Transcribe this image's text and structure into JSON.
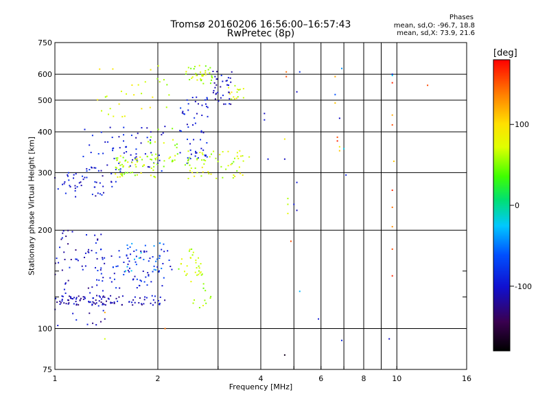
{
  "chart_data": {
    "type": "scatter",
    "title": "Tromsø 20160206 16:56:00–16:57:43",
    "subtitle": "RwPretec (8p)",
    "xlabel": "Frequency [MHz]",
    "ylabel": "Stationary phase Virtual Height [km]",
    "x_scale": "log2",
    "y_scale": "log",
    "xlim": [
      1,
      16
    ],
    "ylim": [
      75,
      750
    ],
    "x_ticks": [
      1,
      2,
      4,
      6,
      8,
      10,
      16
    ],
    "x_ticks_unlabeled": [
      3,
      5,
      7,
      9
    ],
    "y_ticks": [
      75,
      100,
      200,
      300,
      400,
      500,
      600,
      750
    ],
    "y_ticks_unlabeled": [
      125,
      150
    ],
    "grid": true,
    "colorbar": {
      "label": "[deg]",
      "range": [
        -180,
        180
      ],
      "ticks": [
        -100,
        0,
        100
      ]
    },
    "phase_stats": {
      "title": "Phases",
      "line_o": "mean, sd,O: -96.7, 18.8",
      "line_x": "mean, sd,X:  73.9, 21.6"
    },
    "clusters": [
      {
        "f": [
          1.0,
          1.55
        ],
        "h": [
          250,
          300
        ],
        "phase": -105,
        "n": 45
      },
      {
        "f": [
          1.2,
          2.1
        ],
        "h": [
          300,
          420
        ],
        "phase": -95,
        "n": 70
      },
      {
        "f": [
          1.5,
          2.0
        ],
        "h": [
          290,
          340
        ],
        "phase": 75,
        "n": 60
      },
      {
        "f": [
          1.85,
          2.3
        ],
        "h": [
          310,
          420
        ],
        "phase": 70,
        "n": 25
      },
      {
        "f": [
          1.3,
          2.2
        ],
        "h": [
          440,
          650
        ],
        "phase": 85,
        "n": 30
      },
      {
        "f": [
          2.3,
          2.8
        ],
        "h": [
          320,
          520
        ],
        "phase": -95,
        "n": 55
      },
      {
        "f": [
          2.4,
          3.6
        ],
        "h": [
          285,
          350
        ],
        "phase": 78,
        "n": 60
      },
      {
        "f": [
          2.4,
          2.9
        ],
        "h": [
          560,
          640
        ],
        "phase": 75,
        "n": 35
      },
      {
        "f": [
          2.9,
          3.3
        ],
        "h": [
          480,
          620
        ],
        "phase": -110,
        "n": 35
      },
      {
        "f": [
          3.2,
          3.6
        ],
        "h": [
          500,
          560
        ],
        "phase": 90,
        "n": 15
      },
      {
        "f": [
          1.0,
          1.4
        ],
        "h": [
          102,
          200
        ],
        "phase": -110,
        "n": 80
      },
      {
        "f": [
          1.0,
          2.1
        ],
        "h": [
          118,
          126
        ],
        "phase": -115,
        "n": 90
      },
      {
        "f": [
          1.3,
          2.2
        ],
        "h": [
          132,
          175
        ],
        "phase": -95,
        "n": 80
      },
      {
        "f": [
          1.6,
          2.1
        ],
        "h": [
          150,
          185
        ],
        "phase": -40,
        "n": 25
      },
      {
        "f": [
          2.3,
          2.7
        ],
        "h": [
          145,
          175
        ],
        "phase": 75,
        "n": 30
      },
      {
        "f": [
          2.5,
          3.0
        ],
        "h": [
          115,
          140
        ],
        "phase": 70,
        "n": 12
      },
      {
        "f": [
          4.0,
          9.9
        ],
        "h": [
          90,
          620
        ],
        "phase": 150,
        "n": 0
      }
    ],
    "points": [
      {
        "f": 4.75,
        "h": 610,
        "phase": 150
      },
      {
        "f": 4.75,
        "h": 590,
        "phase": 160
      },
      {
        "f": 5.2,
        "h": 610,
        "phase": -80
      },
      {
        "f": 5.1,
        "h": 530,
        "phase": -110
      },
      {
        "f": 4.1,
        "h": 455,
        "phase": -110
      },
      {
        "f": 4.1,
        "h": 435,
        "phase": -100
      },
      {
        "f": 4.2,
        "h": 330,
        "phase": -100
      },
      {
        "f": 4.7,
        "h": 330,
        "phase": -110
      },
      {
        "f": 4.7,
        "h": 380,
        "phase": 100
      },
      {
        "f": 5.1,
        "h": 280,
        "phase": -100
      },
      {
        "f": 4.8,
        "h": 250,
        "phase": 70
      },
      {
        "f": 4.8,
        "h": 240,
        "phase": 75
      },
      {
        "f": 4.8,
        "h": 225,
        "phase": 90
      },
      {
        "f": 5.0,
        "h": 240,
        "phase": -100
      },
      {
        "f": 5.1,
        "h": 230,
        "phase": -110
      },
      {
        "f": 4.9,
        "h": 185,
        "phase": 160
      },
      {
        "f": 5.2,
        "h": 130,
        "phase": -30
      },
      {
        "f": 5.9,
        "h": 107,
        "phase": -100
      },
      {
        "f": 4.7,
        "h": 83,
        "phase": -170
      },
      {
        "f": 6.6,
        "h": 590,
        "phase": 130
      },
      {
        "f": 6.9,
        "h": 625,
        "phase": -40
      },
      {
        "f": 6.6,
        "h": 520,
        "phase": -60
      },
      {
        "f": 6.6,
        "h": 490,
        "phase": 120
      },
      {
        "f": 6.8,
        "h": 440,
        "phase": -110
      },
      {
        "f": 6.7,
        "h": 385,
        "phase": 160
      },
      {
        "f": 6.7,
        "h": 375,
        "phase": 170
      },
      {
        "f": 6.8,
        "h": 360,
        "phase": 100
      },
      {
        "f": 6.8,
        "h": 350,
        "phase": 120
      },
      {
        "f": 7.0,
        "h": 355,
        "phase": -20
      },
      {
        "f": 7.1,
        "h": 295,
        "phase": -90
      },
      {
        "f": 6.9,
        "h": 92,
        "phase": -90
      },
      {
        "f": 9.5,
        "h": 93,
        "phase": -110
      },
      {
        "f": 9.7,
        "h": 600,
        "phase": -100
      },
      {
        "f": 9.7,
        "h": 595,
        "phase": -20
      },
      {
        "f": 9.7,
        "h": 565,
        "phase": 170
      },
      {
        "f": 9.7,
        "h": 450,
        "phase": 130
      },
      {
        "f": 9.7,
        "h": 420,
        "phase": 160
      },
      {
        "f": 9.8,
        "h": 325,
        "phase": 120
      },
      {
        "f": 9.7,
        "h": 265,
        "phase": 170
      },
      {
        "f": 9.7,
        "h": 235,
        "phase": 150
      },
      {
        "f": 9.7,
        "h": 205,
        "phase": 140
      },
      {
        "f": 9.7,
        "h": 175,
        "phase": 160
      },
      {
        "f": 9.7,
        "h": 145,
        "phase": 170
      },
      {
        "f": 12.3,
        "h": 555,
        "phase": 160
      },
      {
        "f": 1.4,
        "h": 93,
        "phase": 80
      },
      {
        "f": 2.1,
        "h": 100,
        "phase": 150
      },
      {
        "f": 1.4,
        "h": 112,
        "phase": 130
      },
      {
        "f": 3.7,
        "h": 335,
        "phase": 80
      }
    ]
  }
}
